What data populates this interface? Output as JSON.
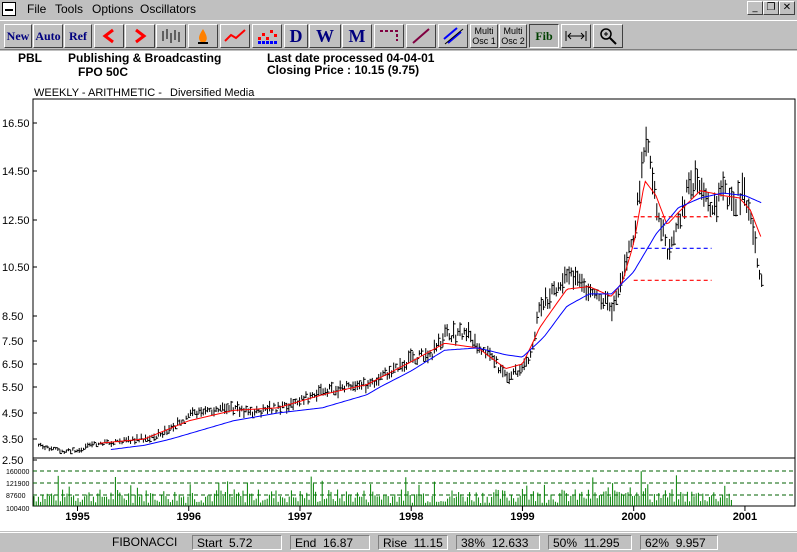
{
  "menu": {
    "items": [
      "File",
      "Tools",
      "Options",
      "Oscillators"
    ]
  },
  "window_controls": [
    "_",
    "❐",
    "✕"
  ],
  "toolbar": {
    "new_label": "New",
    "auto_label": "Auto",
    "ref_label": "Ref",
    "daily_label": "D",
    "weekly_label": "W",
    "monthly_label": "M",
    "multi1_label": [
      "Multi",
      "Osc 1"
    ],
    "multi2_label": [
      "Multi",
      "Osc 2"
    ],
    "fib_label": "Fib"
  },
  "header": {
    "symbol": "PBL",
    "name": "Publishing & Broadcasting",
    "sub": "FPO 50C",
    "last_date": "Last date processed 04-04-01",
    "closing": "Closing Price : 10.15  (9.75)",
    "chart_mode": "WEEKLY - ARITHMETIC -",
    "sector": "Diversified Media"
  },
  "status": {
    "mode": "FIBONACCI",
    "start_label": "Start",
    "start_value": "5.72",
    "end_label": "End",
    "end_value": "16.87",
    "rise_label": "Rise",
    "rise_value": "11.15",
    "p38_label": "38%",
    "p38_value": "12.633",
    "p50_label": "50%",
    "p50_value": "11.295",
    "p62_label": "62%",
    "p62_value": "9.957"
  },
  "chart_data": {
    "type": "line",
    "series": [
      {
        "role": "price",
        "color": "#000000",
        "x": [
          1994.65,
          1994.85,
          1995.0,
          1995.2,
          1995.4,
          1995.6,
          1995.8,
          1996.0,
          1996.2,
          1996.4,
          1996.6,
          1996.8,
          1997.0,
          1997.2,
          1997.4,
          1997.6,
          1997.8,
          1998.0,
          1998.2,
          1998.3,
          1998.5,
          1998.7,
          1998.85,
          1999.0,
          1999.08,
          1999.15,
          1999.3,
          1999.45,
          1999.6,
          1999.75,
          1999.8,
          1999.9,
          2000.0,
          2000.08,
          2000.12,
          2000.2,
          2000.3,
          2000.4,
          2000.5,
          2000.6,
          2000.7,
          2000.8,
          2000.9,
          2001.0,
          2001.05,
          2001.1,
          2001.15
        ],
        "y": [
          3.2,
          2.9,
          3.0,
          3.3,
          3.4,
          3.5,
          3.8,
          4.4,
          4.6,
          4.7,
          4.5,
          4.7,
          5.0,
          5.3,
          5.5,
          5.6,
          6.1,
          6.7,
          7.0,
          7.7,
          7.8,
          6.9,
          6.0,
          6.2,
          7.0,
          8.8,
          9.5,
          10.2,
          9.6,
          9.2,
          8.8,
          10.2,
          11.8,
          14.7,
          15.8,
          13.2,
          11.2,
          12.5,
          13.8,
          14.2,
          13.2,
          13.5,
          13.3,
          13.7,
          12.8,
          11.0,
          10.15
        ]
      },
      {
        "role": "short-average",
        "color": "#ff0000",
        "x": [
          1995.2,
          1995.6,
          1996.0,
          1996.4,
          1996.8,
          1997.2,
          1997.6,
          1998.0,
          1998.3,
          1998.6,
          1998.85,
          1999.0,
          1999.15,
          1999.4,
          1999.6,
          1999.8,
          1999.9,
          2000.0,
          2000.1,
          2000.2,
          2000.3,
          2000.4,
          2000.6,
          2000.8,
          2000.95,
          2001.05,
          2001.15
        ],
        "y": [
          3.3,
          3.5,
          4.2,
          4.6,
          4.7,
          5.2,
          5.6,
          6.6,
          7.4,
          7.2,
          6.3,
          6.5,
          8.0,
          9.6,
          9.7,
          9.3,
          9.9,
          11.5,
          14.1,
          13.5,
          12.3,
          12.8,
          13.7,
          13.5,
          13.4,
          12.9,
          11.7
        ]
      },
      {
        "role": "long-average",
        "color": "#0000ff",
        "x": [
          1995.3,
          1995.6,
          1996.0,
          1996.4,
          1996.8,
          1997.2,
          1997.6,
          1998.0,
          1998.3,
          1998.6,
          1998.85,
          1999.0,
          1999.2,
          1999.4,
          1999.6,
          1999.8,
          2000.0,
          2000.2,
          2000.4,
          2000.6,
          2000.8,
          2001.0,
          2001.15
        ],
        "y": [
          3.0,
          3.2,
          3.7,
          4.2,
          4.5,
          4.7,
          5.2,
          6.2,
          7.1,
          7.2,
          6.9,
          6.8,
          7.7,
          8.9,
          9.4,
          9.4,
          10.3,
          11.9,
          13.0,
          13.4,
          13.6,
          13.5,
          13.2
        ]
      }
    ],
    "fib_levels": [
      {
        "label": "38%",
        "value": 12.633,
        "color": "#ff0000"
      },
      {
        "label": "50%",
        "value": 11.295,
        "color": "#0000ff"
      },
      {
        "label": "62%",
        "value": 9.957,
        "color": "#ff0000"
      }
    ],
    "fib_range": {
      "x_start": 2000.0,
      "x_end": 2000.7
    },
    "y_ticks": [
      "16.50",
      "14.50",
      "12.50",
      "10.50",
      "8.50",
      "7.50",
      "6.50",
      "5.50",
      "4.50",
      "3.50",
      "2.50"
    ],
    "x_ticks": [
      "1995",
      "1996",
      "1997",
      "1998",
      "1999",
      "2000",
      "2001"
    ],
    "volume_ticks": [
      "160000",
      "121900",
      "87600",
      "100400"
    ],
    "grid": false
  }
}
